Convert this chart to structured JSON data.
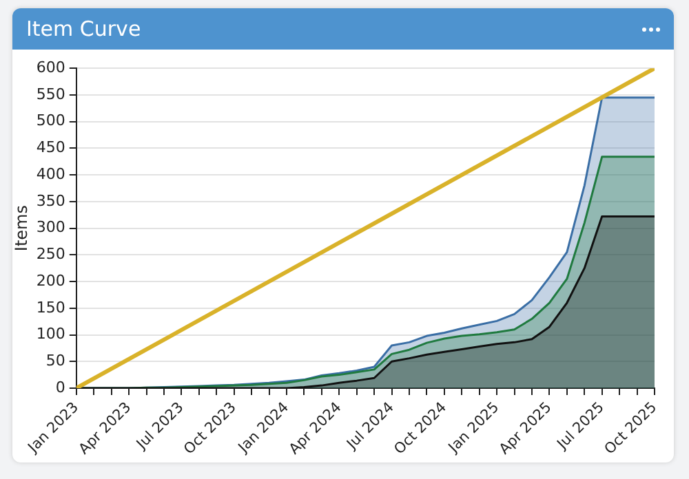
{
  "chart_data": {
    "type": "area",
    "title": "Item Curve",
    "ylabel": "Items",
    "x": [
      "2023-01",
      "2023-02",
      "2023-03",
      "2023-04",
      "2023-05",
      "2023-06",
      "2023-07",
      "2023-08",
      "2023-09",
      "2023-10",
      "2023-11",
      "2023-12",
      "2024-01",
      "2024-02",
      "2024-03",
      "2024-04",
      "2024-05",
      "2024-06",
      "2024-07",
      "2024-08",
      "2024-09",
      "2024-10",
      "2024-11",
      "2024-12",
      "2025-01",
      "2025-02",
      "2025-03",
      "2025-04",
      "2025-05",
      "2025-06",
      "2025-07",
      "2025-08",
      "2025-09",
      "2025-10"
    ],
    "series": [
      {
        "type": "area",
        "color": "#3a6ea5",
        "values": [
          0,
          0,
          0,
          0,
          1,
          2,
          3,
          4,
          5,
          6,
          8,
          10,
          13,
          16,
          24,
          28,
          33,
          40,
          80,
          86,
          98,
          104,
          112,
          119,
          126,
          139,
          165,
          208,
          255,
          380,
          545,
          545,
          545,
          545
        ]
      },
      {
        "type": "area",
        "color": "#1f7a3f",
        "values": [
          0,
          0,
          0,
          0,
          1,
          1,
          2,
          3,
          4,
          5,
          6,
          8,
          10,
          15,
          22,
          25,
          30,
          35,
          64,
          72,
          85,
          93,
          98,
          101,
          105,
          110,
          130,
          160,
          205,
          310,
          434,
          434,
          434,
          434
        ]
      },
      {
        "type": "area",
        "color": "#111111",
        "values": [
          0,
          0,
          0,
          0,
          0,
          0,
          0,
          0,
          0,
          0,
          0,
          0,
          0,
          2,
          5,
          10,
          14,
          19,
          50,
          56,
          63,
          68,
          73,
          78,
          83,
          86,
          92,
          115,
          160,
          225,
          322,
          322,
          322,
          322
        ]
      },
      {
        "type": "line",
        "color": "#d9b22a",
        "x": [
          "2023-01",
          "2025-10"
        ],
        "values": [
          0,
          600
        ]
      }
    ],
    "xlim": [
      "2023-01",
      "2025-10"
    ],
    "xticks": [
      {
        "value": "2023-01",
        "label": "Jan 2023"
      },
      {
        "value": "2023-02",
        "label": null
      },
      {
        "value": "2023-03",
        "label": null
      },
      {
        "value": "2023-04",
        "label": "Apr 2023"
      },
      {
        "value": "2023-05",
        "label": null
      },
      {
        "value": "2023-06",
        "label": null
      },
      {
        "value": "2023-07",
        "label": "Jul 2023"
      },
      {
        "value": "2023-08",
        "label": null
      },
      {
        "value": "2023-09",
        "label": null
      },
      {
        "value": "2023-10",
        "label": "Oct 2023"
      },
      {
        "value": "2023-11",
        "label": null
      },
      {
        "value": "2023-12",
        "label": null
      },
      {
        "value": "2024-01",
        "label": "Jan 2024"
      },
      {
        "value": "2024-02",
        "label": null
      },
      {
        "value": "2024-03",
        "label": null
      },
      {
        "value": "2024-04",
        "label": "Apr 2024"
      },
      {
        "value": "2024-05",
        "label": null
      },
      {
        "value": "2024-06",
        "label": null
      },
      {
        "value": "2024-07",
        "label": "Jul 2024"
      },
      {
        "value": "2024-08",
        "label": null
      },
      {
        "value": "2024-09",
        "label": null
      },
      {
        "value": "2024-10",
        "label": "Oct 2024"
      },
      {
        "value": "2024-11",
        "label": null
      },
      {
        "value": "2024-12",
        "label": null
      },
      {
        "value": "2025-01",
        "label": "Jan 2025"
      },
      {
        "value": "2025-02",
        "label": null
      },
      {
        "value": "2025-03",
        "label": null
      },
      {
        "value": "2025-04",
        "label": "Apr 2025"
      },
      {
        "value": "2025-05",
        "label": null
      },
      {
        "value": "2025-06",
        "label": null
      },
      {
        "value": "2025-07",
        "label": "Jul 2025"
      },
      {
        "value": "2025-08",
        "label": null
      },
      {
        "value": "2025-09",
        "label": null
      },
      {
        "value": "2025-10",
        "label": "Oct 2025"
      }
    ],
    "ylim": [
      0,
      600
    ],
    "yticks": [
      0,
      50,
      100,
      150,
      200,
      250,
      300,
      350,
      400,
      450,
      500,
      550,
      600
    ],
    "grid": "y",
    "marker": "none",
    "line_style": "solid"
  }
}
